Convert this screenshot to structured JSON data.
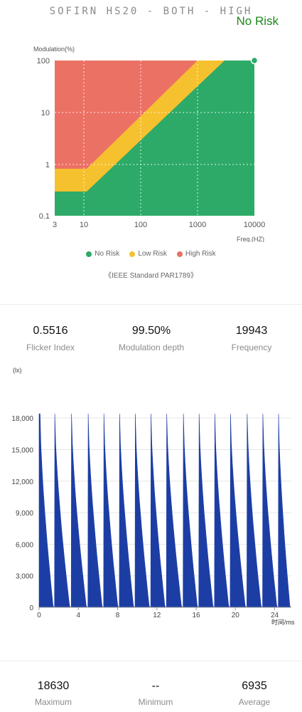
{
  "header": {
    "title": "SOFIRN HS20 - BOTH - HIGH",
    "risk_status": "No Risk",
    "risk_color": "#1a8a1a"
  },
  "risk_chart": {
    "ylabel": "Modulation(%)",
    "xlabel": "Freq.(HZ)",
    "y_ticks": [
      "100",
      "10",
      "1",
      "0.1"
    ],
    "x_ticks": [
      "3",
      "10",
      "100",
      "1000",
      "10000"
    ],
    "legend": [
      {
        "label": "No Risk",
        "color": "#2daa68"
      },
      {
        "label": "Low Risk",
        "color": "#f6c12e"
      },
      {
        "label": "High Risk",
        "color": "#ec7165"
      }
    ],
    "standard": "《IEEE Standard PAR1789》",
    "measured_point": {
      "frequency_hz": 10000,
      "modulation_pct": 100
    }
  },
  "metrics": {
    "flicker_index": {
      "value": "0.5516",
      "label": "Flicker Index"
    },
    "modulation_depth": {
      "value": "99.50%",
      "label": "Modulation depth"
    },
    "frequency": {
      "value": "19943",
      "label": "Frequency"
    }
  },
  "chart_data": {
    "type": "area",
    "ylabel": "(lx)",
    "xlabel": "时间/ms",
    "y_ticks": [
      "0",
      "3,000",
      "6,000",
      "9,000",
      "12,000",
      "15,000",
      "18,000"
    ],
    "x_ticks": [
      "0",
      "4",
      "8",
      "12",
      "16",
      "20",
      "24"
    ],
    "ylim": [
      0,
      19500
    ],
    "xlim": [
      0,
      25.7
    ],
    "color": "#1c3ea4",
    "series": [
      {
        "period_ms": 1.64,
        "peaks_ms": [
          0.1,
          1.6,
          3.3,
          5.0,
          6.6,
          8.2,
          9.8,
          11.4,
          13.0,
          14.7,
          16.3,
          17.9,
          19.5,
          21.2,
          22.8,
          24.4
        ],
        "peak_lx": 18400,
        "min_lx": 0
      }
    ]
  },
  "stats": {
    "maximum": {
      "value": "18630",
      "label": "Maximum"
    },
    "minimum": {
      "value": "--",
      "label": "Minimum"
    },
    "average": {
      "value": "6935",
      "label": "Average"
    }
  }
}
